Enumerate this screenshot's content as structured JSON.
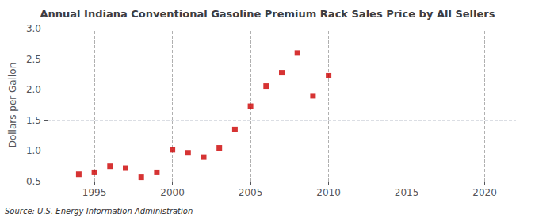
{
  "chart_data": {
    "type": "scatter",
    "title": "Annual Indiana Conventional Gasoline Premium Rack Sales Price by All Sellers",
    "ylabel": "Dollars per Gallon",
    "annotation": "Source: U.S. Energy Information Administration",
    "x": [
      1994,
      1995,
      1996,
      1997,
      1998,
      1999,
      2000,
      2001,
      2002,
      2003,
      2004,
      2005,
      2006,
      2007,
      2008,
      2009,
      2010
    ],
    "values": [
      0.62,
      0.65,
      0.75,
      0.72,
      0.57,
      0.65,
      1.02,
      0.97,
      0.9,
      1.05,
      1.35,
      1.73,
      2.06,
      2.28,
      2.6,
      1.9,
      2.23
    ],
    "color": "#cc0000",
    "marker": "square",
    "xlim": [
      1992,
      2022
    ],
    "ylim": [
      0.5,
      3.0
    ],
    "xticks": [
      1995,
      2000,
      2005,
      2010,
      2015,
      2020
    ],
    "yticks": [
      0.5,
      {
        "value": 1.0,
        "label": "1.0"
      },
      1.5,
      {
        "value": 2.0,
        "label": "2.0"
      },
      2.5,
      {
        "value": 3.0,
        "label": "3.0"
      }
    ],
    "grid": true
  }
}
